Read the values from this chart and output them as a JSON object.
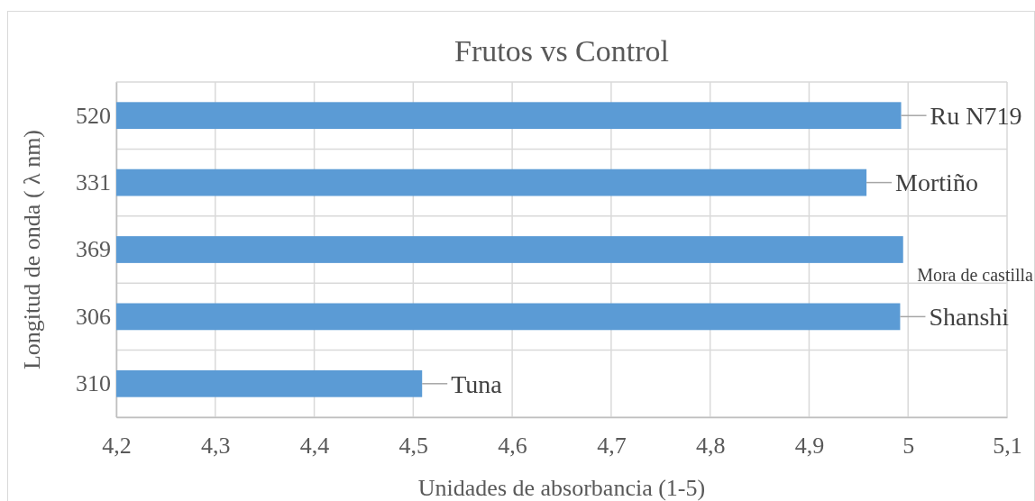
{
  "chart_data": {
    "type": "bar",
    "orientation": "horizontal",
    "title": "Frutos vs Control",
    "xlabel": "Unidades de absorbancia (1-5)",
    "ylabel": "Longitud de onda ( λ nm)",
    "categories": [
      "520",
      "331",
      "369",
      "306",
      "310"
    ],
    "values": [
      4.993,
      4.958,
      4.995,
      4.992,
      4.509
    ],
    "color": "#5b9bd5",
    "xlim": [
      4.2,
      5.1
    ],
    "xticks": [
      {
        "value": 4.2,
        "label": "4,2"
      },
      {
        "value": 4.3,
        "label": "4,3"
      },
      {
        "value": 4.4,
        "label": "4,4"
      },
      {
        "value": 4.5,
        "label": "4,5"
      },
      {
        "value": 4.6,
        "label": "4,6"
      },
      {
        "value": 4.7,
        "label": "4,7"
      },
      {
        "value": 4.8,
        "label": "4,8"
      },
      {
        "value": 4.9,
        "label": "4,9"
      },
      {
        "value": 5,
        "label": "5"
      },
      {
        "value": 5.1,
        "label": "5,1"
      }
    ],
    "grid": true,
    "annotations": [
      {
        "text": "Ru N719",
        "x": 4.993,
        "y": "520"
      },
      {
        "text": "Mortiño",
        "x": 4.958,
        "y": "331"
      },
      {
        "text": "Mora de castilla",
        "x": 4.995,
        "y": "369"
      },
      {
        "text": "Shanshi",
        "x": 4.992,
        "y": "306"
      },
      {
        "text": "Tuna",
        "x": 4.509,
        "y": "310"
      }
    ]
  }
}
